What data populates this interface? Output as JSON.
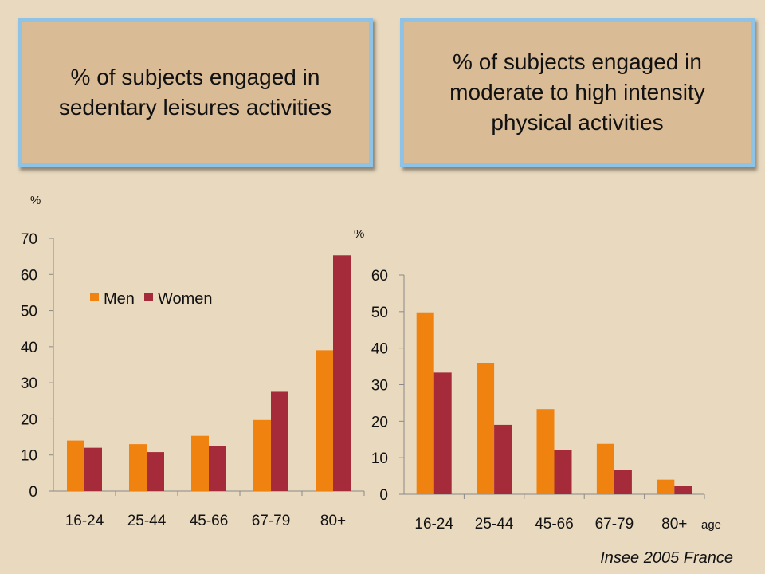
{
  "colors": {
    "men": "#f0820f",
    "women": "#a52a3a",
    "background": "#e8d9bf",
    "box": "#d9bb96",
    "box_border": "#8fc3e6"
  },
  "titles": {
    "left": "% of subjects engaged in sedentary leisures activities",
    "right": "% of subjects engaged in moderate to high intensity physical activities"
  },
  "source": "Insee 2005 France",
  "chart_data": [
    {
      "type": "bar",
      "title": "% of subjects engaged in sedentary leisures activities",
      "ylabel": "%",
      "xlabel": "",
      "categories": [
        "16-24",
        "25-44",
        "45-66",
        "67-79",
        "80+"
      ],
      "series": [
        {
          "name": "Men",
          "values": [
            14,
            13,
            15.3,
            19.7,
            39
          ]
        },
        {
          "name": "Women",
          "values": [
            12,
            10.8,
            12.5,
            27.5,
            65.3
          ]
        }
      ],
      "ylim": [
        0,
        70
      ],
      "yticks": [
        0,
        10,
        20,
        30,
        40,
        50,
        60,
        70
      ],
      "legend": "top-left",
      "grid": false
    },
    {
      "type": "bar",
      "title": "% of subjects engaged in moderate to high intensity physical activities",
      "ylabel": "%",
      "xlabel": "age",
      "categories": [
        "16-24",
        "25-44",
        "45-66",
        "67-79",
        "80+"
      ],
      "series": [
        {
          "name": "Men",
          "values": [
            49.8,
            36,
            23.3,
            13.8,
            4
          ]
        },
        {
          "name": "Women",
          "values": [
            33.3,
            19,
            12.2,
            6.6,
            2.3
          ]
        }
      ],
      "ylim": [
        0,
        60
      ],
      "yticks": [
        0,
        10,
        20,
        30,
        40,
        50,
        60
      ],
      "legend": "none",
      "grid": false
    }
  ]
}
